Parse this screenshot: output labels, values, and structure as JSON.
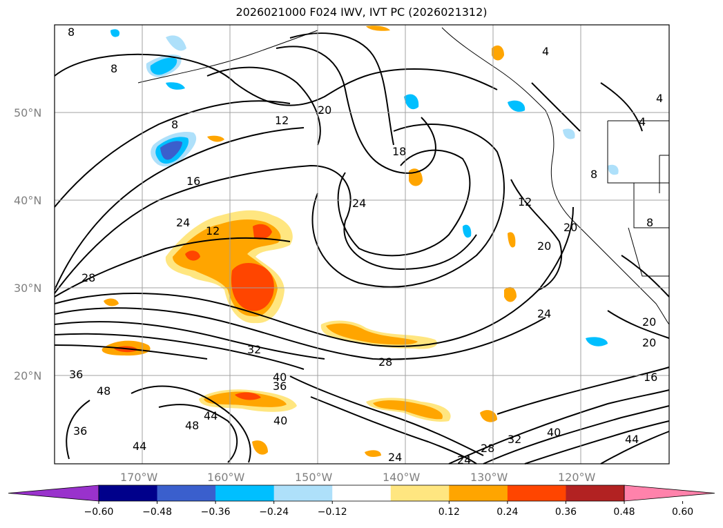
{
  "title": "2026021000 F024 IWV, IVT PC (2026021312)",
  "map": {
    "lat_labels": [
      "50°N",
      "40°N",
      "30°N",
      "20°N"
    ],
    "lat_values": [
      50,
      40,
      30,
      20
    ],
    "lon_labels": [
      "170°W",
      "160°W",
      "150°W",
      "140°W",
      "130°W",
      "120°W"
    ],
    "lon_values": [
      -170,
      -160,
      -150,
      -140,
      -130,
      -120
    ],
    "lat_range": [
      10,
      60
    ],
    "lon_range": [
      -180,
      -110
    ],
    "grid": true,
    "contour_labels": [
      "8",
      "8",
      "8",
      "12",
      "20",
      "16",
      "24",
      "24",
      "12",
      "12",
      "20",
      "20",
      "18",
      "24",
      "28",
      "32",
      "36",
      "40",
      "36",
      "40",
      "48",
      "44",
      "44",
      "48",
      "36",
      "28",
      "32",
      "40",
      "24",
      "24",
      "16",
      "44",
      "20",
      "20",
      "4",
      "4",
      "4",
      "8",
      "8",
      "28"
    ],
    "colors": {
      "land_line": "#000000",
      "grid": "#a0a0a0",
      "orange": "#ffa500",
      "dark_orange": "#ff4500",
      "yellow": "#ffe680",
      "blue": "#00bfff",
      "light_blue": "#aee0fa",
      "royal_blue": "#3a5fcd"
    }
  },
  "colorbar": {
    "ticks": [
      "−0.60",
      "−0.48",
      "−0.36",
      "−0.24",
      "−0.12",
      "0.12",
      "0.24",
      "0.36",
      "0.48",
      "0.60"
    ],
    "colors": [
      "#9932cc",
      "#00008b",
      "#3a5fcd",
      "#00bfff",
      "#aee0fa",
      "#ffffff",
      "#ffe680",
      "#ffa500",
      "#ff4500",
      "#b22222",
      "#ff82ab"
    ]
  }
}
